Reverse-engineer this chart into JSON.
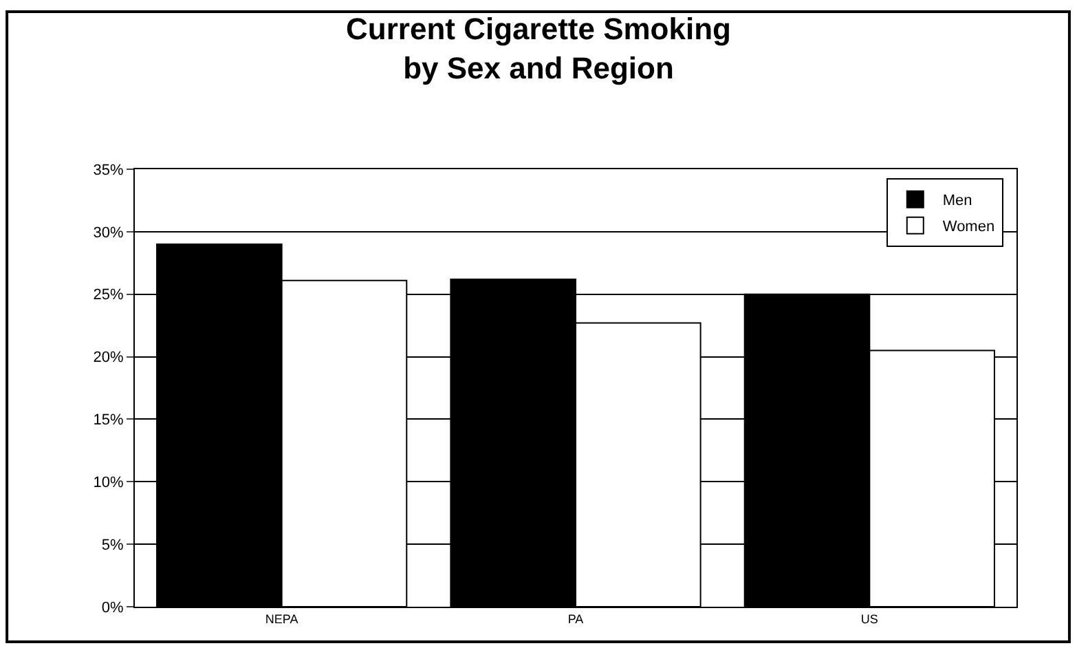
{
  "chart_data": {
    "type": "bar",
    "title": "Current Cigarette Smoking\nby Sex and Region",
    "categories": [
      "NEPA",
      "PA",
      "US"
    ],
    "series": [
      {
        "name": "Men",
        "color": "#000000",
        "values": [
          0.29,
          0.262,
          0.25
        ]
      },
      {
        "name": "Women",
        "color": "#ffffff",
        "values": [
          0.261,
          0.227,
          0.205
        ]
      }
    ],
    "ylim": [
      0,
      0.35
    ],
    "yticks": [
      {
        "value": 0,
        "label": "0%"
      },
      {
        "value": 0.05,
        "label": "5%"
      },
      {
        "value": 0.1,
        "label": "10%"
      },
      {
        "value": 0.15,
        "label": "15%"
      },
      {
        "value": 0.2,
        "label": "20%"
      },
      {
        "value": 0.25,
        "label": "25%"
      },
      {
        "value": 0.3,
        "label": "30%"
      },
      {
        "value": 0.35,
        "label": "35%"
      }
    ],
    "grid": "y",
    "legend": "top right"
  }
}
